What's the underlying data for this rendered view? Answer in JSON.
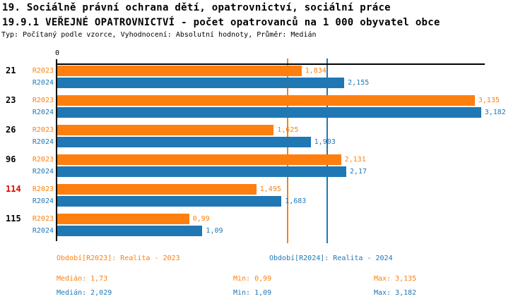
{
  "header": {
    "title_line1": "19. Sociálně právní ochrana dětí, opatrovnictví, sociální práce",
    "title_line2": "19.9.1 VEŘEJNÉ OPATROVNICTVÍ - počet opatrovanců na 1 000 obyvatel obce",
    "subtitle": "Typ: Počítaný podle vzorce, Vyhodnocení: Absolutní hodnoty, Průměr: Medián"
  },
  "chart_data": {
    "type": "bar",
    "orientation": "horizontal",
    "title": "19.9.1 VEŘEJNÉ OPATROVNICTVÍ - počet opatrovanců na 1 000 obyvatel obce",
    "x_axis": {
      "origin_label": "0",
      "xlim": [
        0,
        3.21
      ],
      "grid": false
    },
    "categories": [
      "21",
      "23",
      "26",
      "96",
      "114",
      "115"
    ],
    "category_label_colors": [
      "#000000",
      "#000000",
      "#000000",
      "#000000",
      "#e60000",
      "#000000"
    ],
    "series": [
      {
        "name": "R2023",
        "color": "#ff7f0e",
        "values": [
          1.834,
          3.135,
          1.625,
          2.131,
          1.495,
          0.99
        ],
        "value_labels": [
          "1,834",
          "3,135",
          "1,625",
          "2,131",
          "1,495",
          "0,99"
        ]
      },
      {
        "name": "R2024",
        "color": "#1f77b4",
        "values": [
          2.155,
          3.182,
          1.903,
          2.17,
          1.683,
          1.09
        ],
        "value_labels": [
          "2,155",
          "3,182",
          "1,903",
          "2,17",
          "1,683",
          "1,09"
        ]
      }
    ],
    "reference_lines": [
      {
        "name": "median-2023",
        "value": 1.73,
        "color": "#ff7f0e"
      },
      {
        "name": "median-2024",
        "value": 2.029,
        "color": "#1f77b4"
      }
    ],
    "legend_position": "bottom"
  },
  "legend": {
    "period_2023": "Období[R2023]: Realita - 2023",
    "period_2024": "Období[R2024]: Realita - 2024",
    "median_2023": "Medián: 1,73",
    "median_2024": "Medián: 2,029",
    "min_2023": "Min: 0,99",
    "min_2024": "Min: 1,09",
    "max_2023": "Max: 3,135",
    "max_2024": "Max: 3,182"
  },
  "colors": {
    "series_2023": "#ff7f0e",
    "series_2024": "#1f77b4",
    "highlight_category": "#e60000",
    "axis": "#000000",
    "background": "#ffffff"
  }
}
